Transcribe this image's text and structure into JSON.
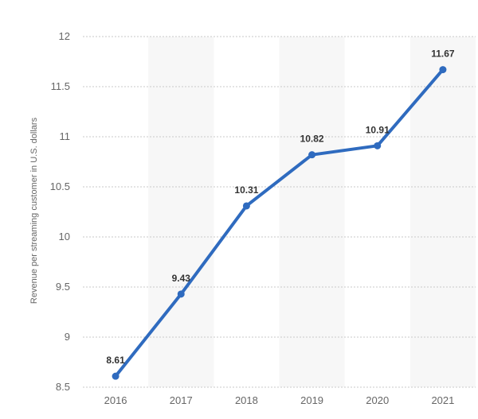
{
  "chart_data": {
    "type": "line",
    "title": "",
    "xlabel": "",
    "ylabel": "Revenue per streaming customer in U.S. dollars",
    "categories": [
      "2016",
      "2017",
      "2018",
      "2019",
      "2020",
      "2021"
    ],
    "series": [
      {
        "values": [
          8.61,
          9.43,
          10.31,
          10.82,
          10.91,
          11.67
        ]
      }
    ],
    "data_labels": [
      "8.61",
      "9.43",
      "10.31",
      "10.82",
      "10.91",
      "11.67"
    ],
    "ylim": [
      8.5,
      12
    ],
    "yticks": [
      "8.5",
      "9",
      "9.5",
      "10",
      "10.5",
      "11",
      "11.5",
      "12"
    ],
    "grid": true,
    "alternating_bands": true,
    "colors": {
      "line": "#2f6bbf",
      "band": "#f7f7f7",
      "grid": "#c8c8c8"
    }
  }
}
